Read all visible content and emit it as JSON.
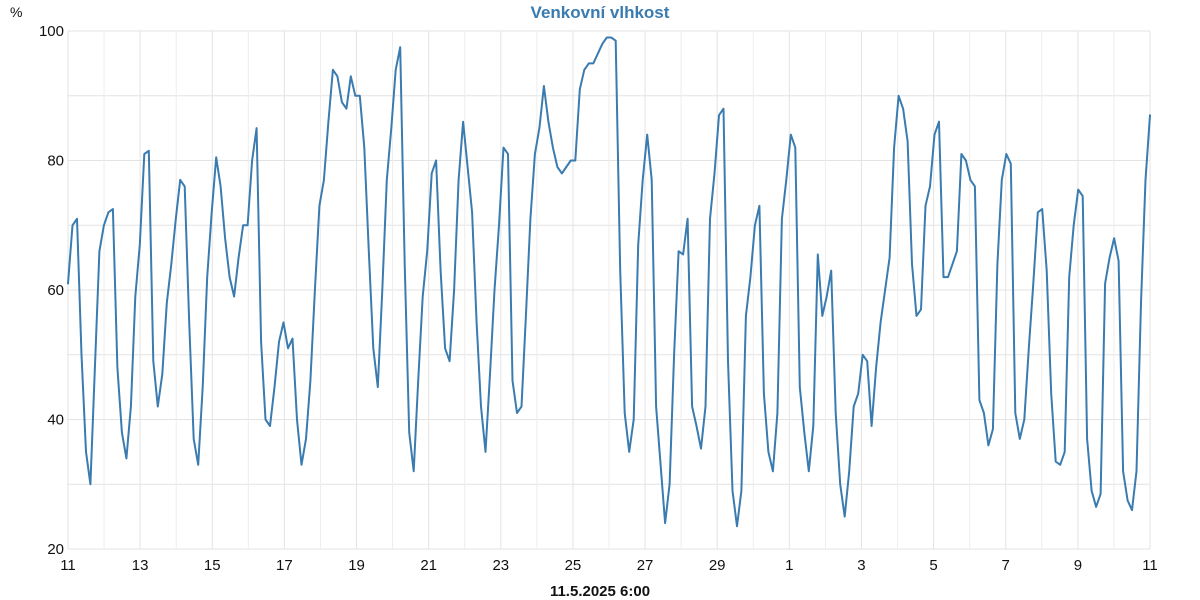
{
  "chart_data": {
    "type": "line",
    "title": "Venkovní vlhkost",
    "ylabel": "%",
    "xlabel": "11.5.2025 6:00",
    "ylim": [
      20,
      100
    ],
    "y_ticks": [
      20,
      40,
      60,
      80,
      100
    ],
    "x_ticks": [
      "11",
      "13",
      "15",
      "17",
      "19",
      "21",
      "23",
      "25",
      "27",
      "29",
      "1",
      "3",
      "5",
      "7",
      "9",
      "11"
    ],
    "grid": true,
    "series_color": "#3a7bb0",
    "series": [
      {
        "values": [
          61,
          70,
          71,
          50,
          35,
          30,
          48,
          66,
          70,
          72,
          72.5,
          48,
          38,
          34,
          42,
          59,
          67,
          81,
          81.5,
          49,
          42,
          47,
          58,
          64,
          71,
          77,
          76,
          55,
          37,
          33,
          45,
          62,
          72,
          80.5,
          76,
          68,
          62,
          59,
          65,
          70,
          70,
          80,
          85,
          52,
          40,
          39,
          45,
          52,
          55,
          51,
          52.5,
          40,
          33,
          37,
          46,
          60,
          73,
          77,
          86,
          94,
          93,
          89,
          88,
          93,
          90,
          90,
          82,
          66,
          51,
          45,
          60,
          77,
          85,
          94,
          97.5,
          64,
          38,
          32,
          46,
          59,
          66,
          78,
          80,
          63,
          51,
          49,
          60,
          77,
          86,
          79,
          72,
          55,
          42,
          35,
          47,
          60,
          70,
          82,
          81,
          46,
          41,
          42,
          56,
          71,
          81,
          85,
          91.5,
          86,
          82,
          79,
          78,
          79,
          80,
          80,
          91,
          94,
          95,
          95,
          96.5,
          98,
          99,
          99,
          98.5,
          63,
          41,
          35,
          40,
          67,
          77,
          84,
          77,
          42,
          33,
          24,
          30,
          50,
          66,
          65.5,
          71,
          42,
          39,
          35.5,
          42,
          71,
          78,
          87,
          88,
          49,
          29,
          23.5,
          29,
          56,
          62,
          70,
          73,
          44,
          35,
          32,
          41,
          71,
          77,
          84,
          82,
          45,
          38,
          32,
          39,
          65.5,
          56,
          59,
          63,
          41,
          30,
          25,
          32,
          42,
          44,
          50,
          49,
          39,
          48,
          55,
          60,
          65,
          82,
          90,
          88,
          83,
          64,
          56,
          57,
          73,
          76,
          84,
          86,
          62,
          62,
          64,
          66,
          81,
          80,
          77,
          76,
          43,
          41,
          36,
          38.5,
          64,
          77,
          81,
          79.5,
          41,
          37,
          40,
          51,
          61,
          72,
          72.5,
          63,
          44,
          33.5,
          33,
          35,
          62,
          70,
          75.5,
          74.5,
          37,
          29,
          26.5,
          28.5,
          61,
          65,
          68,
          64.5,
          32,
          27.5,
          26,
          32,
          58,
          77,
          87
        ]
      }
    ]
  }
}
